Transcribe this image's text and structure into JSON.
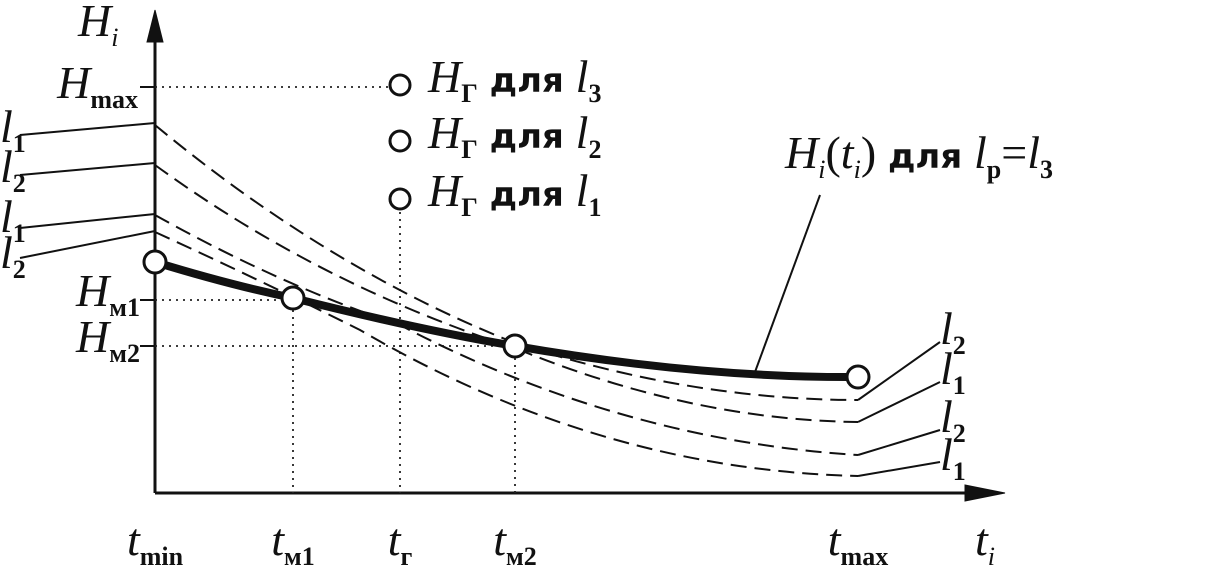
{
  "axes": {
    "y_label": [
      {
        "text": "H",
        "style": "it"
      },
      {
        "text": "i",
        "style": "sub-it"
      }
    ],
    "x_label": [
      {
        "text": "t",
        "style": "it"
      },
      {
        "text": "i",
        "style": "sub-it"
      }
    ]
  },
  "y_ticks": [
    [
      {
        "text": "H",
        "style": "it"
      },
      {
        "text": "max",
        "style": "sub"
      }
    ],
    [
      {
        "text": "H",
        "style": "it"
      },
      {
        "text": "м1",
        "style": "sub"
      }
    ],
    [
      {
        "text": "H",
        "style": "it"
      },
      {
        "text": "м2",
        "style": "sub"
      }
    ]
  ],
  "x_ticks": [
    [
      {
        "text": "t",
        "style": "it"
      },
      {
        "text": "min",
        "style": "sub"
      }
    ],
    [
      {
        "text": "t",
        "style": "it"
      },
      {
        "text": "м1",
        "style": "sub"
      }
    ],
    [
      {
        "text": "t",
        "style": "it"
      },
      {
        "text": "г",
        "style": "sub"
      }
    ],
    [
      {
        "text": "t",
        "style": "it"
      },
      {
        "text": "м2",
        "style": "sub"
      }
    ],
    [
      {
        "text": "t",
        "style": "it"
      },
      {
        "text": "max",
        "style": "sub"
      }
    ]
  ],
  "legend": [
    [
      {
        "text": "H",
        "style": "it"
      },
      {
        "text": "Г",
        "style": "sub"
      },
      {
        "text": " для ",
        "style": "bold"
      },
      {
        "text": "l",
        "style": "it"
      },
      {
        "text": "3",
        "style": "sub"
      }
    ],
    [
      {
        "text": "H",
        "style": "it"
      },
      {
        "text": "Г",
        "style": "sub"
      },
      {
        "text": " для ",
        "style": "bold"
      },
      {
        "text": "l",
        "style": "it"
      },
      {
        "text": "2",
        "style": "sub"
      }
    ],
    [
      {
        "text": "H",
        "style": "it"
      },
      {
        "text": "Г",
        "style": "sub"
      },
      {
        "text": " для ",
        "style": "bold"
      },
      {
        "text": "l",
        "style": "it"
      },
      {
        "text": "1",
        "style": "sub"
      }
    ]
  ],
  "curve_label": [
    {
      "text": "H",
      "style": "it"
    },
    {
      "text": "i",
      "style": "sub-it"
    },
    {
      "text": "(",
      "style": "n"
    },
    {
      "text": "t",
      "style": "it"
    },
    {
      "text": "i",
      "style": "sub-it"
    },
    {
      "text": ")",
      "style": "n"
    },
    {
      "text": " для ",
      "style": "bold"
    },
    {
      "text": "l",
      "style": "it"
    },
    {
      "text": "р",
      "style": "sub"
    },
    {
      "text": "=",
      "style": "n"
    },
    {
      "text": "l",
      "style": "it"
    },
    {
      "text": "3",
      "style": "sub"
    }
  ],
  "left_labels": [
    [
      {
        "text": "l",
        "style": "it"
      },
      {
        "text": "1",
        "style": "sub"
      }
    ],
    [
      {
        "text": "l",
        "style": "it"
      },
      {
        "text": "2",
        "style": "sub"
      }
    ],
    [
      {
        "text": "l",
        "style": "it"
      },
      {
        "text": "1",
        "style": "sub"
      }
    ],
    [
      {
        "text": "l",
        "style": "it"
      },
      {
        "text": "2",
        "style": "sub"
      }
    ]
  ],
  "right_labels": [
    [
      {
        "text": "l",
        "style": "it"
      },
      {
        "text": "2",
        "style": "sub"
      }
    ],
    [
      {
        "text": "l",
        "style": "it"
      },
      {
        "text": "1",
        "style": "sub"
      }
    ],
    [
      {
        "text": "l",
        "style": "it"
      },
      {
        "text": "2",
        "style": "sub"
      }
    ],
    [
      {
        "text": "l",
        "style": "it"
      },
      {
        "text": "1",
        "style": "sub"
      }
    ]
  ]
}
